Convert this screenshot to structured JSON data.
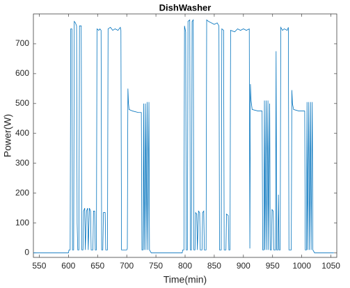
{
  "chart_data": {
    "type": "line",
    "title": "DishWasher",
    "xlabel": "Time(min)",
    "ylabel": "Power(W)",
    "color": "#0072bd",
    "xlim": [
      540,
      1060
    ],
    "ylim": [
      -15,
      800
    ],
    "xticks": [
      550,
      600,
      650,
      700,
      750,
      800,
      850,
      900,
      950,
      1000,
      1050
    ],
    "yticks": [
      0,
      100,
      200,
      300,
      400,
      500,
      600,
      700
    ],
    "x": [
      540,
      600,
      601,
      603,
      604,
      606,
      607,
      609,
      610,
      612,
      614,
      615,
      616,
      618,
      619,
      622,
      623,
      625,
      626,
      628,
      629,
      631,
      633,
      634,
      636,
      638,
      639,
      642,
      643,
      645,
      646,
      648,
      649,
      652,
      654,
      656,
      657,
      659,
      660,
      663,
      664,
      667,
      668,
      672,
      676,
      680,
      685,
      689,
      690,
      691,
      700,
      701,
      702,
      703,
      704,
      710,
      720,
      725,
      726,
      728,
      729,
      730,
      732,
      733,
      735,
      736,
      738,
      739,
      742,
      795,
      796,
      798,
      799,
      801,
      802,
      804,
      805,
      808,
      809,
      811,
      812,
      814,
      815,
      817,
      818,
      820,
      821,
      823,
      825,
      826,
      829,
      830,
      832,
      833,
      836,
      837,
      840,
      845,
      850,
      855,
      858,
      859,
      862,
      863,
      866,
      867,
      870,
      871,
      874,
      875,
      877,
      878,
      885,
      890,
      895,
      900,
      905,
      910,
      911,
      912,
      913,
      915,
      925,
      932,
      933,
      935,
      936,
      937,
      939,
      940,
      942,
      943,
      945,
      946,
      948,
      949,
      951,
      952,
      955,
      956,
      957,
      959,
      960,
      961,
      963,
      964,
      967,
      970,
      975,
      977,
      978,
      982,
      983,
      984,
      986,
      995,
      1005,
      1006,
      1008,
      1009,
      1010,
      1012,
      1013,
      1015,
      1016,
      1018,
      1019,
      1022,
      1055
    ],
    "values": [
      0,
      0,
      10,
      10,
      750,
      750,
      10,
      10,
      775,
      770,
      760,
      100,
      10,
      10,
      760,
      760,
      10,
      10,
      140,
      150,
      10,
      140,
      150,
      10,
      150,
      140,
      10,
      10,
      140,
      140,
      10,
      10,
      750,
      745,
      750,
      745,
      10,
      10,
      135,
      135,
      10,
      10,
      750,
      755,
      745,
      750,
      745,
      755,
      745,
      10,
      10,
      15,
      550,
      500,
      480,
      475,
      470,
      470,
      10,
      10,
      500,
      10,
      500,
      10,
      505,
      10,
      505,
      10,
      0,
      0,
      10,
      10,
      760,
      740,
      10,
      10,
      775,
      780,
      10,
      10,
      775,
      780,
      10,
      10,
      135,
      130,
      10,
      140,
      135,
      10,
      10,
      135,
      140,
      10,
      10,
      780,
      775,
      770,
      765,
      770,
      760,
      10,
      10,
      750,
      745,
      10,
      10,
      130,
      125,
      10,
      10,
      745,
      740,
      750,
      745,
      750,
      745,
      750,
      15,
      565,
      510,
      480,
      475,
      475,
      10,
      10,
      510,
      10,
      510,
      10,
      510,
      10,
      500,
      10,
      10,
      145,
      140,
      10,
      10,
      675,
      10,
      10,
      195,
      10,
      10,
      755,
      745,
      750,
      745,
      755,
      10,
      10,
      545,
      500,
      480,
      475,
      475,
      10,
      10,
      505,
      10,
      505,
      10,
      505,
      10,
      505,
      10,
      0,
      0
    ],
    "grid": false
  }
}
